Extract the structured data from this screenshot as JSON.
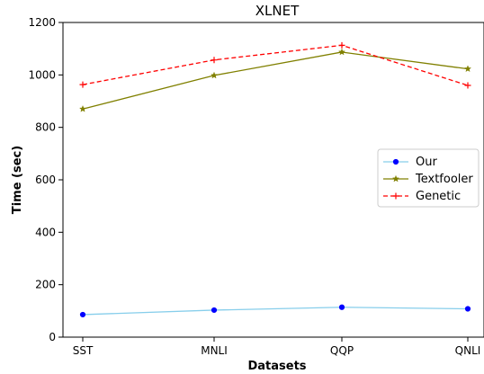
{
  "chart_data": {
    "type": "line",
    "title": "XLNET",
    "xlabel": "Datasets",
    "ylabel": "Time (sec)",
    "categories": [
      "SST",
      "MNLI",
      "QQP",
      "QNLI"
    ],
    "ylim": [
      0,
      1200
    ],
    "yticks": [
      0,
      200,
      400,
      600,
      800,
      1000,
      1200
    ],
    "grid": false,
    "legend_position": "center-right",
    "series": [
      {
        "name": "Our",
        "values": [
          86,
          103,
          114,
          108
        ],
        "color": "#87ceeb",
        "marker": "circle",
        "marker_color": "#0000ff",
        "dash": "solid"
      },
      {
        "name": "Textfooler",
        "values": [
          870,
          998,
          1087,
          1023
        ],
        "color": "#808000",
        "marker": "star",
        "marker_color": "#808000",
        "dash": "solid"
      },
      {
        "name": "Genetic",
        "values": [
          963,
          1057,
          1113,
          960
        ],
        "color": "#ff0000",
        "marker": "plus",
        "marker_color": "#ff0000",
        "dash": "dashed"
      }
    ]
  }
}
